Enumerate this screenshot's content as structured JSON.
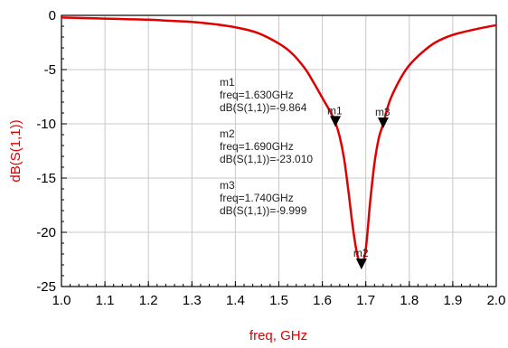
{
  "chart_data": {
    "type": "line",
    "xlabel": "freq, GHz",
    "ylabel": "dB(S(1,1))",
    "xlim": [
      1.0,
      2.0
    ],
    "ylim": [
      -25,
      0
    ],
    "x_ticks": [
      "1.0",
      "1.1",
      "1.2",
      "1.3",
      "1.4",
      "1.5",
      "1.6",
      "1.7",
      "1.8",
      "1.9",
      "2.0"
    ],
    "y_ticks": [
      "0",
      "-5",
      "-10",
      "-15",
      "-20",
      "-25"
    ],
    "grid": true,
    "series": [
      {
        "color": "#e00000",
        "x": [
          1.0,
          1.05,
          1.1,
          1.15,
          1.2,
          1.25,
          1.3,
          1.35,
          1.4,
          1.45,
          1.5,
          1.53,
          1.56,
          1.58,
          1.6,
          1.61,
          1.62,
          1.63,
          1.64,
          1.65,
          1.66,
          1.67,
          1.68,
          1.69,
          1.7,
          1.71,
          1.72,
          1.73,
          1.74,
          1.75,
          1.76,
          1.78,
          1.8,
          1.83,
          1.86,
          1.9,
          1.95,
          2.0
        ],
        "y": [
          -0.2,
          -0.25,
          -0.3,
          -0.35,
          -0.4,
          -0.5,
          -0.6,
          -0.8,
          -1.1,
          -1.6,
          -2.6,
          -3.5,
          -4.9,
          -6.2,
          -7.6,
          -8.3,
          -9.0,
          -9.864,
          -11.2,
          -13.2,
          -16.2,
          -19.5,
          -22.0,
          -23.01,
          -21.5,
          -17.2,
          -13.6,
          -11.3,
          -9.999,
          -8.5,
          -7.4,
          -5.8,
          -4.6,
          -3.4,
          -2.5,
          -1.8,
          -1.3,
          -0.9
        ]
      }
    ],
    "markers": [
      {
        "name": "m1",
        "freq": 1.63,
        "value": -9.864,
        "freq_text": "freq=1.630GHz",
        "value_text": "dB(S(1,1))=-9.864"
      },
      {
        "name": "m2",
        "freq": 1.69,
        "value": -23.01,
        "freq_text": "freq=1.690GHz",
        "value_text": "dB(S(1,1))=-23.010"
      },
      {
        "name": "m3",
        "freq": 1.74,
        "value": -9.999,
        "freq_text": "freq=1.740GHz",
        "value_text": "dB(S(1,1))=-9.999"
      }
    ]
  }
}
